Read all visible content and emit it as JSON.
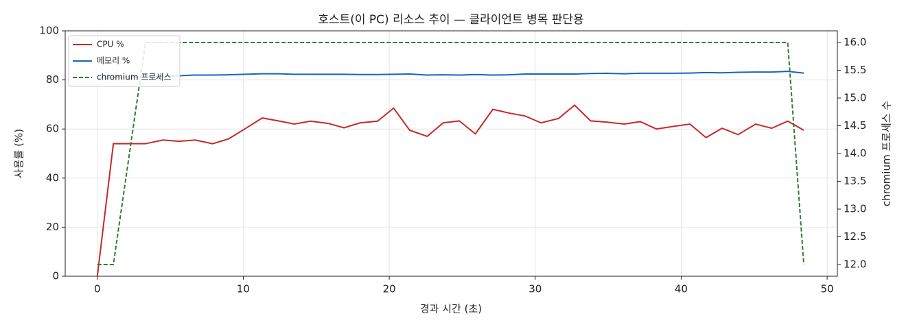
{
  "chart_data": {
    "type": "line",
    "title": "호스트(이 PC) 리소스 추이 — 클라이언트 병목 판단용",
    "x_label": "경과 시간 (초)",
    "y_label": "사용률 (%)",
    "y2_label": "chromium 프로세스 수",
    "x": [
      0,
      1.1,
      3.3,
      4.5,
      5.6,
      6.7,
      7.9,
      9.0,
      10.1,
      11.3,
      12.4,
      13.5,
      14.6,
      15.8,
      16.9,
      18.0,
      19.2,
      20.3,
      21.4,
      22.6,
      23.7,
      24.8,
      25.9,
      27.1,
      28.2,
      29.3,
      30.4,
      31.6,
      32.7,
      33.8,
      34.9,
      36.1,
      37.2,
      38.3,
      39.4,
      40.6,
      41.7,
      42.8,
      43.9,
      45.1,
      46.2,
      47.3,
      48.4
    ],
    "series": [
      {
        "name": "CPU %",
        "color": "#c62828",
        "values": [
          0,
          54,
          54,
          55.5,
          55,
          55.5,
          54,
          56,
          60,
          64.5,
          63.3,
          62,
          63.2,
          62.3,
          60.5,
          62.5,
          63.2,
          68.5,
          59.5,
          57,
          62.5,
          63.3,
          58,
          68,
          66.5,
          65.3,
          62.5,
          64.3,
          69.7,
          63.3,
          62.8,
          62,
          63,
          60,
          61,
          62,
          56.5,
          60.3,
          57.7,
          62,
          60.3,
          63.2,
          59.5
        ]
      },
      {
        "name": "메모리 %",
        "color": "#1565c0",
        "values": [
          80.5,
          81,
          81.3,
          81.5,
          81.7,
          82,
          82,
          82.1,
          82.3,
          82.5,
          82.5,
          82.3,
          82.3,
          82.3,
          82.3,
          82.2,
          82.2,
          82.3,
          82.4,
          82,
          82.1,
          82,
          82.2,
          82,
          82.1,
          82.4,
          82.4,
          82.4,
          82.4,
          82.6,
          82.7,
          82.5,
          82.7,
          82.7,
          82.7,
          82.8,
          83,
          82.9,
          83.1,
          83.2,
          83.2,
          83.5,
          82.8
        ]
      },
      {
        "name": "chromium 프로세스",
        "color": "#2e7d32",
        "dashed": true,
        "axis": "y2",
        "values": [
          12,
          12,
          16,
          16,
          16,
          16,
          16,
          16,
          16,
          16,
          16,
          16,
          16,
          16,
          16,
          16,
          16,
          16,
          16,
          16,
          16,
          16,
          16,
          16,
          16,
          16,
          16,
          16,
          16,
          16,
          16,
          16,
          16,
          16,
          16,
          16,
          16,
          16,
          16,
          16,
          16,
          16,
          12
        ]
      }
    ],
    "xlim": [
      -2.2,
      50.7
    ],
    "xticks": [
      0,
      10,
      20,
      30,
      40,
      50
    ],
    "ylim": [
      0,
      100
    ],
    "yticks": [
      0,
      20,
      40,
      60,
      80,
      100
    ],
    "y2lim": [
      11.79,
      16.21
    ],
    "y2ticks": [
      {
        "value": 12,
        "label": "12.0"
      },
      {
        "value": 12.5,
        "label": "12.5"
      },
      {
        "value": 13,
        "label": "13.0"
      },
      {
        "value": 13.5,
        "label": "13.5"
      },
      {
        "value": 14,
        "label": "14.0"
      },
      {
        "value": 14.5,
        "label": "14.5"
      },
      {
        "value": 15,
        "label": "15.0"
      },
      {
        "value": 15.5,
        "label": "15.5"
      },
      {
        "value": 16,
        "label": "16.0"
      }
    ],
    "grid": true,
    "legend": "upper-left"
  }
}
